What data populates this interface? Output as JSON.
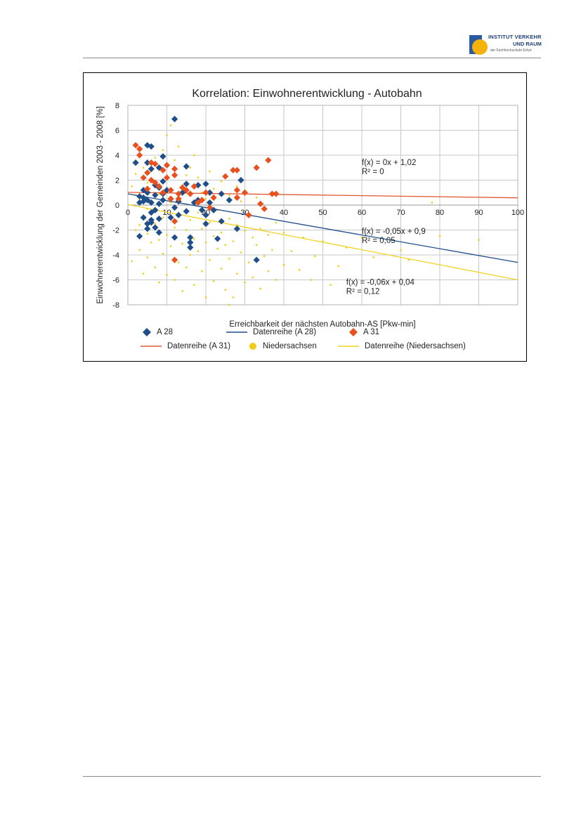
{
  "logo": {
    "line1": "INSTITUT VERKEHR",
    "line2": "UND RAUM",
    "line3": "der Fachhochschule Erfurt"
  },
  "colors": {
    "a28": "#1f4e89",
    "a31": "#e8501e",
    "nds": "#f2cc1a",
    "nds_line": "#f2d21f",
    "a31_line": "#e2562e",
    "a28_line": "#1f4e89",
    "grid": "#c8c8c8"
  },
  "chart_data": {
    "type": "scatter",
    "title": "Korrelation: Einwohnerentwicklung - Autobahn",
    "xlabel": "Erreichbarkeit der nächsten Autobahn-AS [Pkw-min]",
    "ylabel": "Einwohnerentwicklung der Gemeinden 2003 - 2008 [%]",
    "xlim": [
      0,
      100
    ],
    "ylim": [
      -8,
      8
    ],
    "x_ticks": [
      0,
      10,
      20,
      30,
      40,
      50,
      60,
      70,
      80,
      90,
      100
    ],
    "y_ticks": [
      -8,
      -6,
      -4,
      -2,
      0,
      2,
      4,
      6,
      8
    ],
    "grid": true,
    "legend_position": "bottom",
    "series": [
      {
        "name": "A 28",
        "kind": "scatter",
        "marker": "diamond",
        "points": [
          [
            2,
            3.4
          ],
          [
            3,
            0.7
          ],
          [
            3,
            -2.5
          ],
          [
            4,
            1.2
          ],
          [
            4,
            -1.0
          ],
          [
            4,
            0.3
          ],
          [
            5,
            4.8
          ],
          [
            5,
            3.4
          ],
          [
            5,
            1.0
          ],
          [
            5,
            0.4
          ],
          [
            5,
            -1.5
          ],
          [
            5,
            -1.9
          ],
          [
            6,
            4.7
          ],
          [
            6,
            2.9
          ],
          [
            6,
            0.2
          ],
          [
            6,
            -0.6
          ],
          [
            6,
            -1.4
          ],
          [
            7,
            1.6
          ],
          [
            7,
            0.8
          ],
          [
            7,
            -0.4
          ],
          [
            8,
            3.0
          ],
          [
            8,
            1.4
          ],
          [
            8,
            0.1
          ],
          [
            8,
            -1.1
          ],
          [
            8,
            -2.2
          ],
          [
            9,
            3.9
          ],
          [
            9,
            1.9
          ],
          [
            9,
            0.4
          ],
          [
            10,
            1.2
          ],
          [
            11,
            -1.0
          ],
          [
            11,
            0.5
          ],
          [
            12,
            6.9
          ],
          [
            12,
            -2.6
          ],
          [
            12,
            -0.2
          ],
          [
            13,
            0.3
          ],
          [
            13,
            -0.8
          ],
          [
            14,
            1.0
          ],
          [
            15,
            3.1
          ],
          [
            15,
            1.7
          ],
          [
            15,
            -0.5
          ],
          [
            16,
            -2.6
          ],
          [
            16,
            -3.4
          ],
          [
            16,
            -3.0
          ],
          [
            17,
            0.2
          ],
          [
            18,
            1.6
          ],
          [
            18,
            0.4
          ],
          [
            19,
            -0.4
          ],
          [
            20,
            1.7
          ],
          [
            20,
            -0.8
          ],
          [
            20,
            -1.5
          ],
          [
            21,
            0.2
          ],
          [
            21,
            1.0
          ],
          [
            22,
            -0.4
          ],
          [
            23,
            -2.7
          ],
          [
            24,
            0.9
          ],
          [
            24,
            -1.3
          ],
          [
            26,
            0.4
          ],
          [
            28,
            -1.9
          ],
          [
            29,
            2.0
          ],
          [
            33,
            -4.4
          ],
          [
            3,
            0.2
          ],
          [
            4,
            0.6
          ],
          [
            6,
            -1.2
          ],
          [
            7,
            -1.8
          ],
          [
            9,
            0.9
          ]
        ]
      },
      {
        "name": "Datenreihe (A 28)",
        "kind": "line",
        "equation": "f(x) = -0,05x + 0,9",
        "r2": "R² = 0,05",
        "slope": -0.055,
        "intercept": 0.9
      },
      {
        "name": "A 31",
        "kind": "scatter",
        "marker": "diamond",
        "points": [
          [
            2,
            4.8
          ],
          [
            3,
            4.5
          ],
          [
            3,
            4.0
          ],
          [
            4,
            2.2
          ],
          [
            5,
            2.6
          ],
          [
            5,
            1.3
          ],
          [
            6,
            2.0
          ],
          [
            6,
            3.4
          ],
          [
            7,
            3.3
          ],
          [
            7,
            1.8
          ],
          [
            8,
            1.5
          ],
          [
            9,
            2.8
          ],
          [
            9,
            1.0
          ],
          [
            10,
            3.2
          ],
          [
            10,
            2.2
          ],
          [
            11,
            1.2
          ],
          [
            11,
            0.5
          ],
          [
            12,
            2.9
          ],
          [
            12,
            2.4
          ],
          [
            12,
            -4.4
          ],
          [
            12,
            -1.3
          ],
          [
            13,
            0.9
          ],
          [
            13,
            0.5
          ],
          [
            14,
            1.4
          ],
          [
            15,
            1.2
          ],
          [
            16,
            0.9
          ],
          [
            17,
            1.5
          ],
          [
            18,
            0.2
          ],
          [
            19,
            0.4
          ],
          [
            20,
            1.0
          ],
          [
            21,
            -0.2
          ],
          [
            22,
            0.6
          ],
          [
            25,
            2.3
          ],
          [
            27,
            2.8
          ],
          [
            28,
            2.8
          ],
          [
            28,
            1.2
          ],
          [
            28,
            0.6
          ],
          [
            30,
            1.0
          ],
          [
            31,
            -0.8
          ],
          [
            33,
            3.0
          ],
          [
            34,
            0.1
          ],
          [
            35,
            -0.3
          ],
          [
            36,
            3.6
          ],
          [
            37,
            0.9
          ],
          [
            38,
            0.9
          ]
        ]
      },
      {
        "name": "Datenreihe (A 31)",
        "kind": "line",
        "equation": "f(x) = 0x + 1,02",
        "r2": "R² = 0",
        "slope": -0.0044,
        "intercept": 1.02
      },
      {
        "name": "Niedersachsen",
        "kind": "scatter",
        "marker": "dot",
        "points": [
          [
            1,
            -4.5
          ],
          [
            1,
            1.5
          ],
          [
            2,
            -2.0
          ],
          [
            2,
            2.5
          ],
          [
            3,
            -3.6
          ],
          [
            3,
            0.4
          ],
          [
            4,
            -5.5
          ],
          [
            4,
            -1.0
          ],
          [
            4,
            3.0
          ],
          [
            5,
            -4.2
          ],
          [
            5,
            -2.3
          ],
          [
            5,
            1.8
          ],
          [
            6,
            -3.0
          ],
          [
            6,
            -0.5
          ],
          [
            6,
            2.7
          ],
          [
            7,
            -5.0
          ],
          [
            7,
            -1.5
          ],
          [
            7,
            3.8
          ],
          [
            8,
            -6.2
          ],
          [
            8,
            -2.8
          ],
          [
            8,
            0.9
          ],
          [
            9,
            -3.9
          ],
          [
            9,
            -1.0
          ],
          [
            9,
            4.4
          ],
          [
            10,
            -5.6
          ],
          [
            10,
            -2.4
          ],
          [
            10,
            5.6
          ],
          [
            11,
            -3.3
          ],
          [
            11,
            0.2
          ],
          [
            11,
            6.4
          ],
          [
            12,
            -6.0
          ],
          [
            12,
            -1.8
          ],
          [
            12,
            3.6
          ],
          [
            13,
            -4.6
          ],
          [
            13,
            -0.9
          ],
          [
            13,
            4.7
          ],
          [
            14,
            -6.9
          ],
          [
            14,
            -3.1
          ],
          [
            14,
            1.6
          ],
          [
            15,
            -5.0
          ],
          [
            15,
            -2.0
          ],
          [
            15,
            2.4
          ],
          [
            16,
            -4.0
          ],
          [
            16,
            -1.2
          ],
          [
            16,
            3.0
          ],
          [
            17,
            -6.4
          ],
          [
            17,
            -2.7
          ],
          [
            17,
            4.0
          ],
          [
            18,
            -3.7
          ],
          [
            18,
            -0.6
          ],
          [
            18,
            2.2
          ],
          [
            19,
            -5.3
          ],
          [
            19,
            -1.9
          ],
          [
            19,
            1.0
          ],
          [
            20,
            -7.4
          ],
          [
            20,
            -3.0
          ],
          [
            20,
            0.5
          ],
          [
            21,
            -4.4
          ],
          [
            21,
            -1.4
          ],
          [
            21,
            2.7
          ],
          [
            22,
            -6.1
          ],
          [
            22,
            -2.5
          ],
          [
            22,
            1.3
          ],
          [
            23,
            -3.5
          ],
          [
            23,
            -0.4
          ],
          [
            24,
            -5.1
          ],
          [
            24,
            -2.2
          ],
          [
            24,
            1.9
          ],
          [
            25,
            -6.8
          ],
          [
            25,
            -3.2
          ],
          [
            26,
            -4.3
          ],
          [
            26,
            -1.1
          ],
          [
            26,
            0.8
          ],
          [
            27,
            -7.4
          ],
          [
            27,
            -2.9
          ],
          [
            28,
            -5.5
          ],
          [
            28,
            -1.6
          ],
          [
            28,
            1.5
          ],
          [
            29,
            -3.8
          ],
          [
            29,
            0.3
          ],
          [
            30,
            -6.2
          ],
          [
            30,
            -2.1
          ],
          [
            31,
            -4.6
          ],
          [
            31,
            -0.8
          ],
          [
            32,
            -5.8
          ],
          [
            32,
            -2.6
          ],
          [
            33,
            -3.2
          ],
          [
            33,
            0.6
          ],
          [
            34,
            -6.7
          ],
          [
            34,
            -1.9
          ],
          [
            35,
            -4.1
          ],
          [
            36,
            -5.3
          ],
          [
            36,
            -2.4
          ],
          [
            37,
            -3.6
          ],
          [
            38,
            -6.0
          ],
          [
            38,
            -1.4
          ],
          [
            40,
            -4.8
          ],
          [
            40,
            -2.2
          ],
          [
            42,
            -3.7
          ],
          [
            44,
            -5.2
          ],
          [
            45,
            -2.6
          ],
          [
            47,
            -6.0
          ],
          [
            48,
            -4.1
          ],
          [
            50,
            -2.9
          ],
          [
            52,
            -6.4
          ],
          [
            54,
            -4.9
          ],
          [
            56,
            -3.4
          ],
          [
            60,
            -2.6
          ],
          [
            63,
            -4.2
          ],
          [
            70,
            -3.6
          ],
          [
            72,
            -4.4
          ],
          [
            80,
            -2.5
          ],
          [
            90,
            -2.8
          ],
          [
            78,
            0.2
          ],
          [
            26,
            -8.0
          ],
          [
            2,
            0.8
          ],
          [
            3,
            -1.6
          ],
          [
            5,
            -0.3
          ]
        ]
      },
      {
        "name": "Datenreihe (Niedersachsen)",
        "kind": "line",
        "equation": "f(x) = -0,06x + 0,04",
        "r2": "R² = 0,12",
        "slope": -0.0604,
        "intercept": 0.04
      }
    ]
  }
}
